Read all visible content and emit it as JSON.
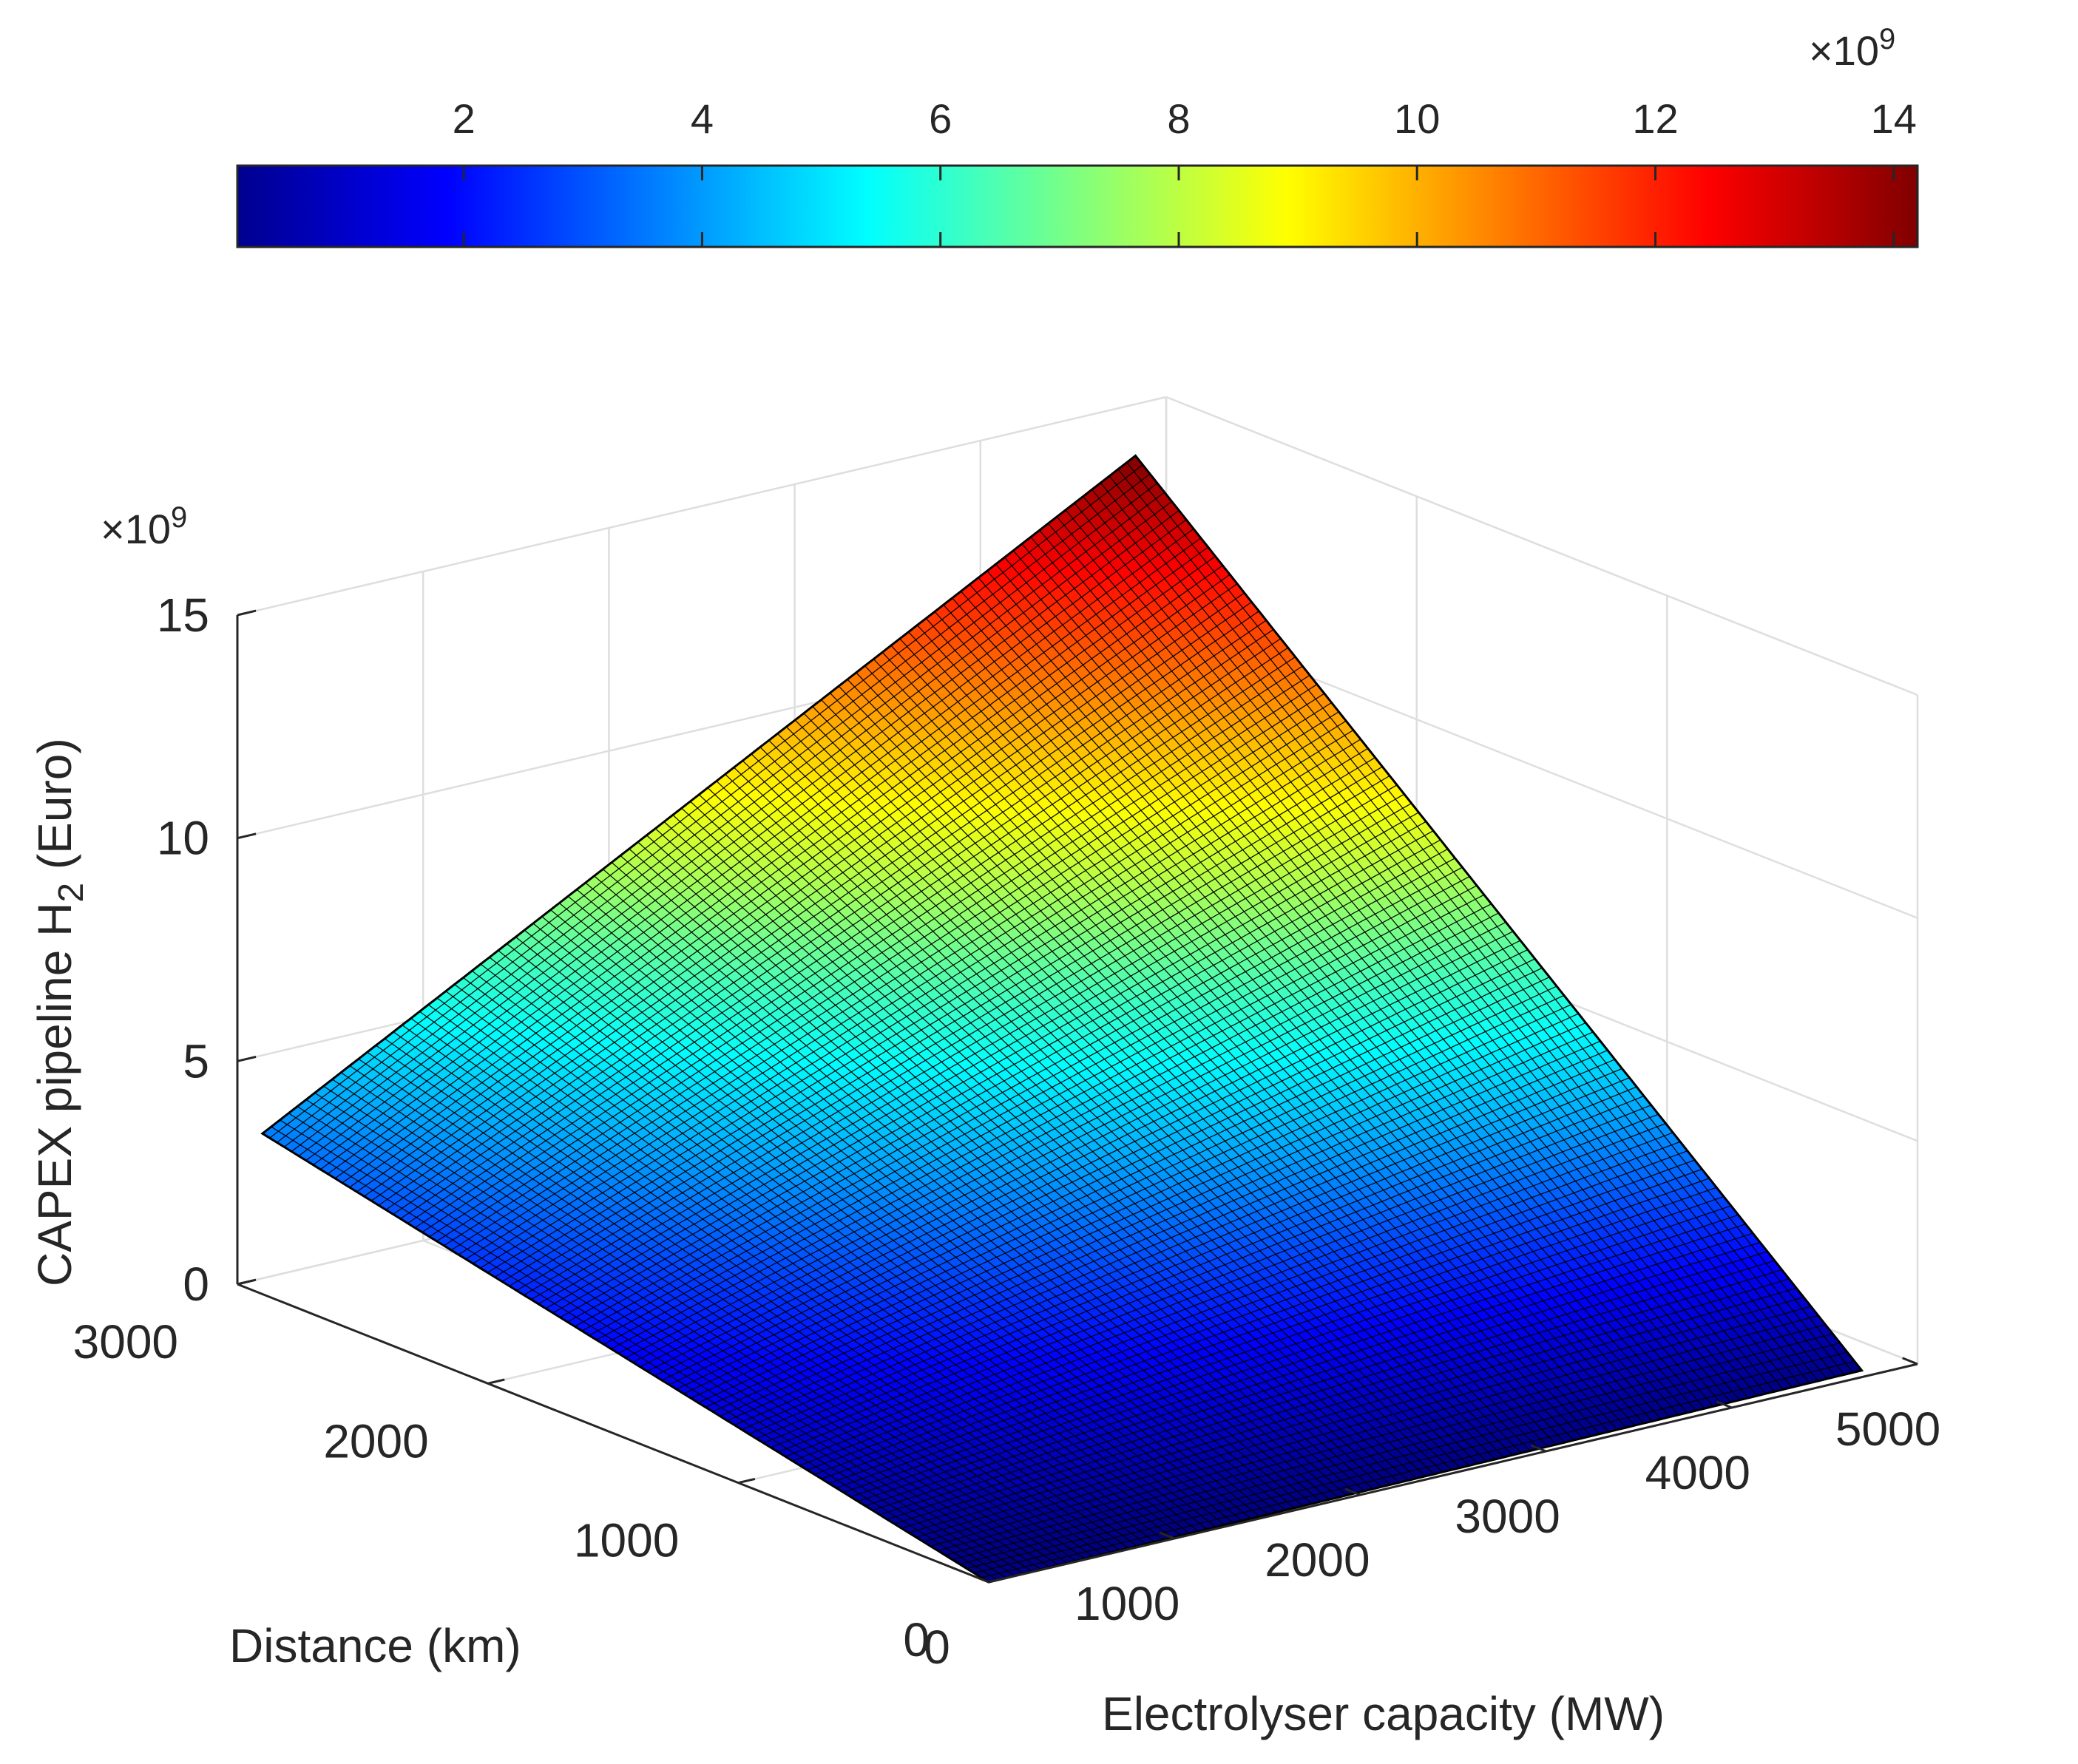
{
  "chart_data": {
    "type": "surface3d",
    "title": "",
    "xlabel": "Electrolyser capacity (MW)",
    "ylabel": "Distance (km)",
    "zlabel": {
      "main": "CAPEX pipeline H",
      "sub": "2",
      "suffix": " (Euro)"
    },
    "xlim": [
      0,
      5000
    ],
    "ylim": [
      0,
      3000
    ],
    "zlim": [
      0,
      15
    ],
    "x_ticks": [
      "0",
      "1000",
      "2000",
      "3000",
      "4000",
      "5000"
    ],
    "y_ticks": [
      "0",
      "1000",
      "2000",
      "3000"
    ],
    "z_ticks": [
      "0",
      "5",
      "10",
      "15"
    ],
    "z_exponent": {
      "base": "×10",
      "power": "9"
    },
    "surface": {
      "x_range": [
        0,
        4700
      ],
      "y_range": [
        0,
        2900
      ],
      "corner_values_e9": {
        "x0_y0": 0.0,
        "xmax_y0": 0.15,
        "x0_ymax": 3.6,
        "xmax_ymax": 14.2
      },
      "grid_lines": 100
    },
    "colorbar": {
      "location": "top",
      "colormap": "jet",
      "range": [
        0.1,
        14.2
      ],
      "ticks": [
        "2",
        "4",
        "6",
        "8",
        "10",
        "12",
        "14"
      ],
      "exponent": {
        "base": "×10",
        "power": "9"
      }
    },
    "grid": true
  }
}
